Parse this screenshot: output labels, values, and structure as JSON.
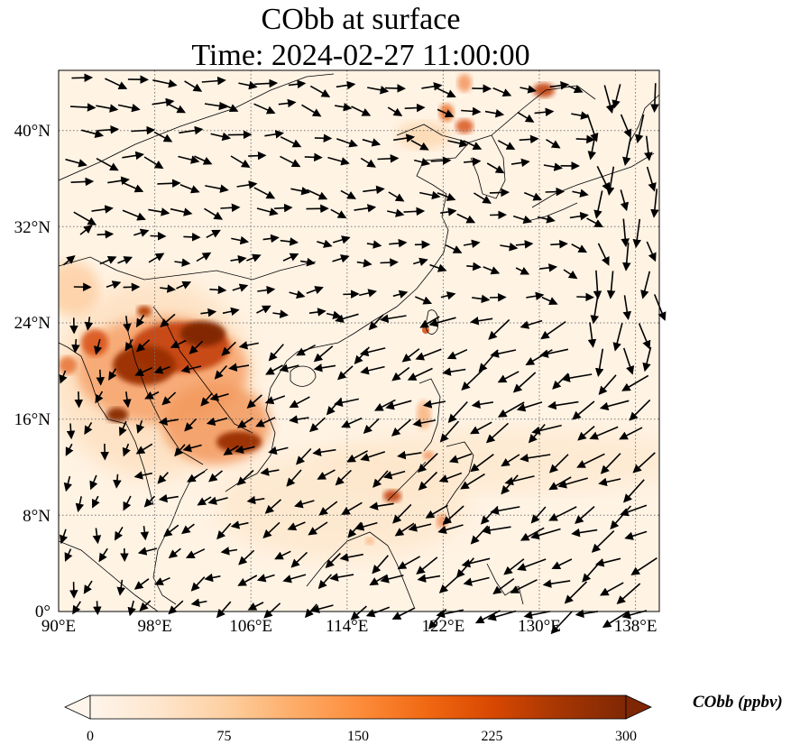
{
  "title": {
    "line1": "CObb at surface",
    "line2": "Time: 2024-02-27 11:00:00"
  },
  "map": {
    "lon_ticks": [
      "90°E",
      "98°E",
      "106°E",
      "114°E",
      "122°E",
      "130°E",
      "138°E"
    ],
    "lat_ticks": [
      "0°",
      "8°N",
      "16°N",
      "24°N",
      "32°N",
      "40°N"
    ],
    "lon_range": [
      90,
      140
    ],
    "lat_range": [
      0,
      45
    ],
    "gridlines": "dotted",
    "variable": "CObb",
    "wind_vectors": "shown"
  },
  "colorbar": {
    "label": "CObb (ppbv)",
    "ticks": [
      "0",
      "75",
      "150",
      "225",
      "300"
    ],
    "min": 0,
    "max": 300,
    "extend": "both",
    "colormap": [
      "#fff5eb",
      "#fee6ce",
      "#fdd0a2",
      "#fdae6b",
      "#fd8d3c",
      "#f16913",
      "#d94801",
      "#a63603",
      "#7f2704"
    ]
  },
  "plumes": [
    {
      "region": "northern Myanmar/Laos/northern Thailand",
      "level": "very high"
    },
    {
      "region": "central Thailand/Cambodia",
      "level": "high"
    },
    {
      "region": "northeast China near Beijing/Shenyang",
      "level": "moderate"
    },
    {
      "region": "Philippines (Luzon, Palawan)",
      "level": "moderate"
    },
    {
      "region": "Taiwan",
      "level": "low"
    }
  ]
}
